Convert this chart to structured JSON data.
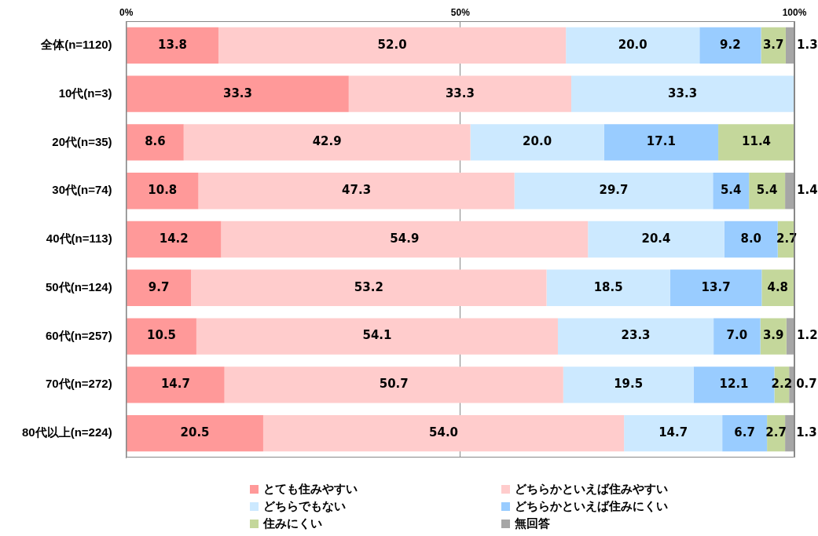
{
  "chart_data": {
    "type": "bar",
    "orientation": "horizontal",
    "stacked": true,
    "data_labels": true,
    "grid": "x",
    "legend": "bottom",
    "categories": [
      "全体(n=1120)",
      "10代(n=3)",
      "20代(n=35)",
      "30代(n=74)",
      "40代(n=113)",
      "50代(n=124)",
      "60代(n=257)",
      "70代(n=272)",
      "80代以上(n=224)"
    ],
    "xlim": [
      0,
      100
    ],
    "xticks": [
      {
        "value": 0,
        "label": "0%"
      },
      {
        "value": 50,
        "label": "50%"
      },
      {
        "value": 100,
        "label": "100%"
      }
    ],
    "series": [
      {
        "name": "とても住みやすい",
        "color": "#ff9999",
        "values": [
          13.8,
          33.3,
          8.6,
          10.8,
          14.2,
          9.7,
          10.5,
          14.7,
          20.5
        ],
        "value_labels": [
          "13.8",
          "33.3",
          "8.6",
          "10.8",
          "14.2",
          "9.7",
          "10.5",
          "14.7",
          "20.5"
        ]
      },
      {
        "name": "どちらかといえば住みやすい",
        "color": "#ffcccc",
        "values": [
          52.0,
          33.3,
          42.9,
          47.3,
          54.9,
          53.2,
          54.1,
          50.7,
          54.0
        ],
        "value_labels": [
          "52.0",
          "33.3",
          "42.9",
          "47.3",
          "54.9",
          "53.2",
          "54.1",
          "50.7",
          "54.0"
        ]
      },
      {
        "name": "どちらでもない",
        "color": "#cce9ff",
        "values": [
          20.0,
          33.3,
          20.0,
          29.7,
          20.4,
          18.5,
          23.3,
          19.5,
          14.7
        ],
        "value_labels": [
          "20.0",
          "33.3",
          "20.0",
          "29.7",
          "20.4",
          "18.5",
          "23.3",
          "19.5",
          "14.7"
        ]
      },
      {
        "name": "どちらかといえば住みにくい",
        "color": "#99ccff",
        "values": [
          9.2,
          null,
          17.1,
          5.4,
          8.0,
          13.7,
          7.0,
          12.1,
          6.7
        ],
        "value_labels": [
          "9.2",
          null,
          "17.1",
          "5.4",
          "8.0",
          "13.7",
          "7.0",
          "12.1",
          "6.7"
        ]
      },
      {
        "name": "住みにくい",
        "color": "#c4d79b",
        "values": [
          3.7,
          null,
          11.4,
          5.4,
          2.7,
          4.8,
          3.9,
          2.2,
          2.7
        ],
        "value_labels": [
          "3.7",
          null,
          "11.4",
          "5.4",
          "2.7",
          "4.8",
          "3.9",
          "2.2",
          "2.7"
        ]
      },
      {
        "name": "無回答",
        "color": "#a6a6a6",
        "values": [
          1.3,
          null,
          null,
          1.4,
          null,
          null,
          1.2,
          0.7,
          1.3
        ],
        "value_labels": [
          "1.3",
          null,
          null,
          "1.4",
          null,
          null,
          "1.2",
          "0.7",
          "1.3"
        ]
      }
    ]
  }
}
